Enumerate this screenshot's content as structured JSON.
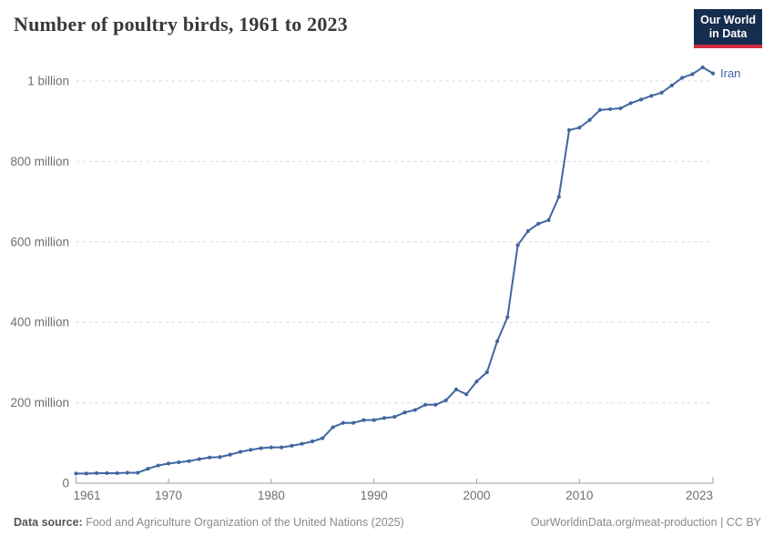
{
  "header": {
    "title": "Number of poultry birds, 1961 to 2023",
    "logo": {
      "line1": "Our World",
      "line2": "in Data"
    }
  },
  "chart_data": {
    "type": "line",
    "title": "Number of poultry birds, 1961 to 2023",
    "xlabel": "",
    "ylabel": "",
    "xlim": [
      1961,
      2023
    ],
    "ylim": [
      0,
      1100
    ],
    "grid": "horizontal-dashed",
    "legend_position": "end-of-line-label",
    "x_ticks": [
      "1961",
      "1970",
      "1980",
      "1990",
      "2000",
      "2010",
      "2023"
    ],
    "y_ticks": [
      {
        "value": 0,
        "label": "0"
      },
      {
        "value": 200,
        "label": "200 million"
      },
      {
        "value": 400,
        "label": "400 million"
      },
      {
        "value": 600,
        "label": "600 million"
      },
      {
        "value": 800,
        "label": "800 million"
      },
      {
        "value": 1000,
        "label": "1 billion"
      }
    ],
    "unit": "million birds",
    "series": [
      {
        "name": "Iran",
        "color": "#4165a0",
        "x": [
          1961,
          1962,
          1963,
          1964,
          1965,
          1966,
          1967,
          1968,
          1969,
          1970,
          1971,
          1972,
          1973,
          1974,
          1975,
          1976,
          1977,
          1978,
          1979,
          1980,
          1981,
          1982,
          1983,
          1984,
          1985,
          1986,
          1987,
          1988,
          1989,
          1990,
          1991,
          1992,
          1993,
          1994,
          1995,
          1996,
          1997,
          1998,
          1999,
          2000,
          2001,
          2002,
          2003,
          2004,
          2005,
          2006,
          2007,
          2008,
          2009,
          2010,
          2011,
          2012,
          2013,
          2014,
          2015,
          2016,
          2017,
          2018,
          2019,
          2020,
          2021,
          2022,
          2023
        ],
        "values": [
          24,
          24,
          25,
          25,
          25,
          26,
          26,
          36,
          44,
          49,
          52,
          55,
          60,
          64,
          65,
          71,
          78,
          83,
          87,
          89,
          89,
          93,
          98,
          104,
          112,
          139,
          150,
          150,
          157,
          157,
          162,
          165,
          176,
          182,
          195,
          195,
          206,
          233,
          221,
          253,
          276,
          353,
          413,
          592,
          627,
          645,
          654,
          712,
          878,
          884,
          903,
          928,
          930,
          932,
          945,
          954,
          963,
          971,
          989,
          1008,
          1017,
          1034,
          1019
        ]
      }
    ],
    "colors": {
      "line": "#4165a0",
      "grid": "#d6d6d6",
      "axis": "#9d9d9d",
      "tick_text": "#6e6e6e"
    }
  },
  "footer": {
    "source_label": "Data source:",
    "source_text": " Food and Agriculture Organization of the United Nations (2025)",
    "link_text": "OurWorldinData.org/meat-production",
    "separator": " | ",
    "license": "CC BY"
  }
}
